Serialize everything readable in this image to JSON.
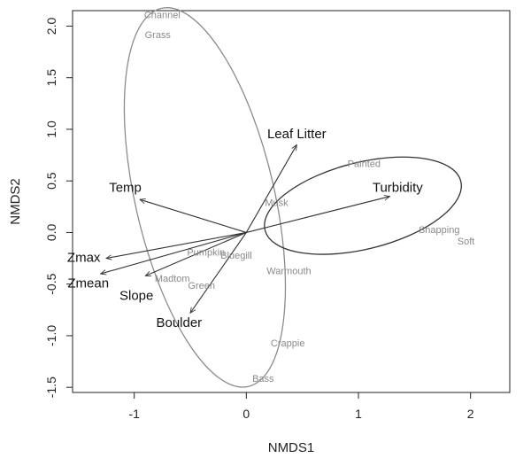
{
  "chart_data": {
    "type": "scatter",
    "title": "",
    "xlabel": "NMDS1",
    "ylabel": "NMDS2",
    "xlim": [
      -1.55,
      2.35
    ],
    "ylim": [
      -1.55,
      2.15
    ],
    "xticks": [
      {
        "value": -1,
        "label": "-1"
      },
      {
        "value": 0,
        "label": "0"
      },
      {
        "value": 1,
        "label": "1"
      },
      {
        "value": 2,
        "label": "2"
      }
    ],
    "yticks": [
      {
        "value": -1.5,
        "label": "-1.5"
      },
      {
        "value": -1.0,
        "label": "-1.0"
      },
      {
        "value": -0.5,
        "label": "-0.5"
      },
      {
        "value": 0.0,
        "label": "0.0"
      },
      {
        "value": 0.5,
        "label": "0.5"
      },
      {
        "value": 1.0,
        "label": "1.0"
      },
      {
        "value": 1.5,
        "label": "1.5"
      },
      {
        "value": 2.0,
        "label": "2.0"
      }
    ],
    "species": [
      {
        "label": "Channel",
        "x": -0.75,
        "y": 2.1
      },
      {
        "label": "Grass",
        "x": -0.79,
        "y": 1.91
      },
      {
        "label": "Painted",
        "x": 1.05,
        "y": 0.66
      },
      {
        "label": "Musk",
        "x": 0.27,
        "y": 0.28
      },
      {
        "label": "Snapping",
        "x": 1.72,
        "y": 0.02
      },
      {
        "label": "Soft",
        "x": 1.96,
        "y": -0.09
      },
      {
        "label": "Pumpkin",
        "x": -0.36,
        "y": -0.2
      },
      {
        "label": "Bluegill",
        "x": -0.09,
        "y": -0.23
      },
      {
        "label": "Madtom",
        "x": -0.66,
        "y": -0.45
      },
      {
        "label": "Green",
        "x": -0.4,
        "y": -0.52
      },
      {
        "label": "Warmouth",
        "x": 0.38,
        "y": -0.38
      },
      {
        "label": "Crappie",
        "x": 0.37,
        "y": -1.08
      },
      {
        "label": "Bass",
        "x": 0.15,
        "y": -1.42
      }
    ],
    "vectors": [
      {
        "label": "Leaf Litter",
        "x": 0.45,
        "y": 0.85,
        "label_x": 0.45,
        "label_y": 0.95
      },
      {
        "label": "Turbidity",
        "x": 1.28,
        "y": 0.35,
        "label_x": 1.35,
        "label_y": 0.43
      },
      {
        "label": "Temp",
        "x": -0.95,
        "y": 0.32,
        "label_x": -1.08,
        "label_y": 0.43
      },
      {
        "label": "Zmax",
        "x": -1.25,
        "y": -0.25,
        "label_x": -1.45,
        "label_y": -0.25
      },
      {
        "label": "Zmean",
        "x": -1.3,
        "y": -0.4,
        "label_x": -1.41,
        "label_y": -0.5
      },
      {
        "label": "Slope",
        "x": -0.9,
        "y": -0.42,
        "label_x": -0.98,
        "label_y": -0.62
      },
      {
        "label": "Boulder",
        "x": -0.5,
        "y": -0.78,
        "label_x": -0.6,
        "label_y": -0.88
      }
    ],
    "ellipses": [
      {
        "cx": -0.37,
        "cy": 0.34,
        "rx": 0.62,
        "ry": 1.88,
        "rotation_deg": -13,
        "color": "#8c8c8c"
      },
      {
        "cx": 1.04,
        "cy": 0.26,
        "rx": 0.9,
        "ry": 0.42,
        "rotation_deg": -14,
        "color": "#333333"
      }
    ],
    "origin": {
      "x": 0,
      "y": 0
    },
    "grid": false,
    "colors": {
      "species": "#8a8a8a",
      "vectors": "#333333",
      "axis": "#222222"
    }
  }
}
